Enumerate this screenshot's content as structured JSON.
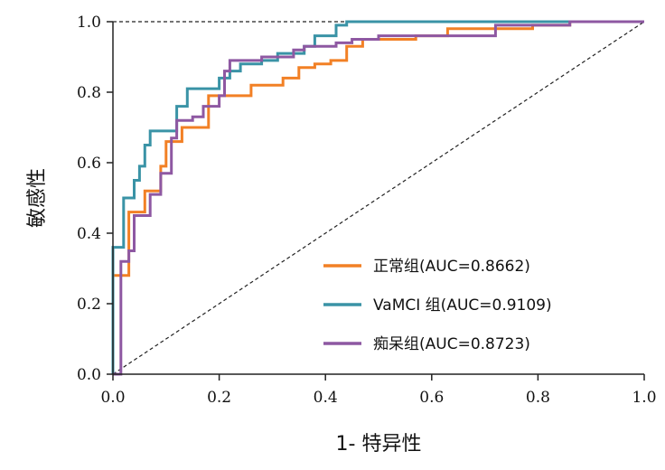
{
  "chart_data": {
    "type": "line",
    "xlabel": "1- 特异性",
    "ylabel": "敏感性",
    "xlim": [
      0,
      1
    ],
    "ylim": [
      0,
      1
    ],
    "x_ticks": [
      "0.0",
      "0.2",
      "0.4",
      "0.6",
      "0.8",
      "1.0"
    ],
    "y_ticks": [
      "0.0",
      "0.2",
      "0.4",
      "0.6",
      "0.8",
      "1.0"
    ],
    "grid": false,
    "legend_position": "bottom-right",
    "series": [
      {
        "name": "正常组(AUC=0.8662)",
        "color": "#F28025",
        "points": [
          [
            0,
            0
          ],
          [
            0,
            0.28
          ],
          [
            0.03,
            0.28
          ],
          [
            0.03,
            0.46
          ],
          [
            0.06,
            0.46
          ],
          [
            0.06,
            0.52
          ],
          [
            0.09,
            0.52
          ],
          [
            0.09,
            0.59
          ],
          [
            0.1,
            0.59
          ],
          [
            0.1,
            0.66
          ],
          [
            0.13,
            0.66
          ],
          [
            0.13,
            0.7
          ],
          [
            0.18,
            0.7
          ],
          [
            0.18,
            0.79
          ],
          [
            0.26,
            0.79
          ],
          [
            0.26,
            0.82
          ],
          [
            0.32,
            0.82
          ],
          [
            0.32,
            0.84
          ],
          [
            0.35,
            0.84
          ],
          [
            0.35,
            0.87
          ],
          [
            0.38,
            0.87
          ],
          [
            0.38,
            0.88
          ],
          [
            0.41,
            0.88
          ],
          [
            0.41,
            0.89
          ],
          [
            0.44,
            0.89
          ],
          [
            0.44,
            0.93
          ],
          [
            0.47,
            0.93
          ],
          [
            0.47,
            0.95
          ],
          [
            0.57,
            0.95
          ],
          [
            0.57,
            0.96
          ],
          [
            0.63,
            0.96
          ],
          [
            0.63,
            0.98
          ],
          [
            0.79,
            0.98
          ],
          [
            0.79,
            0.99
          ],
          [
            0.86,
            0.99
          ],
          [
            0.86,
            1.0
          ],
          [
            1,
            1
          ]
        ]
      },
      {
        "name": "VaMCI 组(AUC=0.9109)",
        "color": "#3A93A6",
        "points": [
          [
            0,
            0
          ],
          [
            0,
            0.36
          ],
          [
            0.02,
            0.36
          ],
          [
            0.02,
            0.5
          ],
          [
            0.04,
            0.5
          ],
          [
            0.04,
            0.55
          ],
          [
            0.05,
            0.55
          ],
          [
            0.05,
            0.59
          ],
          [
            0.06,
            0.59
          ],
          [
            0.06,
            0.65
          ],
          [
            0.07,
            0.65
          ],
          [
            0.07,
            0.69
          ],
          [
            0.12,
            0.69
          ],
          [
            0.12,
            0.76
          ],
          [
            0.14,
            0.76
          ],
          [
            0.14,
            0.81
          ],
          [
            0.2,
            0.81
          ],
          [
            0.2,
            0.84
          ],
          [
            0.22,
            0.84
          ],
          [
            0.22,
            0.86
          ],
          [
            0.24,
            0.86
          ],
          [
            0.24,
            0.88
          ],
          [
            0.28,
            0.88
          ],
          [
            0.28,
            0.89
          ],
          [
            0.31,
            0.89
          ],
          [
            0.31,
            0.91
          ],
          [
            0.36,
            0.91
          ],
          [
            0.36,
            0.93
          ],
          [
            0.38,
            0.93
          ],
          [
            0.38,
            0.96
          ],
          [
            0.42,
            0.96
          ],
          [
            0.42,
            0.99
          ],
          [
            0.44,
            0.99
          ],
          [
            0.44,
            1.0
          ],
          [
            1,
            1
          ]
        ]
      },
      {
        "name": "痴呆组(AUC=0.8723)",
        "color": "#8E58A2",
        "points": [
          [
            0,
            0
          ],
          [
            0.015,
            0
          ],
          [
            0.015,
            0.32
          ],
          [
            0.03,
            0.32
          ],
          [
            0.03,
            0.35
          ],
          [
            0.04,
            0.35
          ],
          [
            0.04,
            0.45
          ],
          [
            0.07,
            0.45
          ],
          [
            0.07,
            0.51
          ],
          [
            0.09,
            0.51
          ],
          [
            0.09,
            0.57
          ],
          [
            0.11,
            0.57
          ],
          [
            0.11,
            0.67
          ],
          [
            0.12,
            0.67
          ],
          [
            0.12,
            0.72
          ],
          [
            0.15,
            0.72
          ],
          [
            0.15,
            0.73
          ],
          [
            0.17,
            0.73
          ],
          [
            0.17,
            0.76
          ],
          [
            0.2,
            0.76
          ],
          [
            0.2,
            0.79
          ],
          [
            0.21,
            0.79
          ],
          [
            0.21,
            0.86
          ],
          [
            0.22,
            0.86
          ],
          [
            0.22,
            0.89
          ],
          [
            0.28,
            0.89
          ],
          [
            0.28,
            0.9
          ],
          [
            0.34,
            0.9
          ],
          [
            0.34,
            0.92
          ],
          [
            0.36,
            0.92
          ],
          [
            0.36,
            0.93
          ],
          [
            0.42,
            0.93
          ],
          [
            0.42,
            0.94
          ],
          [
            0.45,
            0.94
          ],
          [
            0.45,
            0.95
          ],
          [
            0.5,
            0.95
          ],
          [
            0.5,
            0.96
          ],
          [
            0.72,
            0.96
          ],
          [
            0.72,
            0.99
          ],
          [
            0.86,
            0.99
          ],
          [
            0.86,
            1.0
          ],
          [
            1,
            1
          ]
        ]
      }
    ]
  }
}
